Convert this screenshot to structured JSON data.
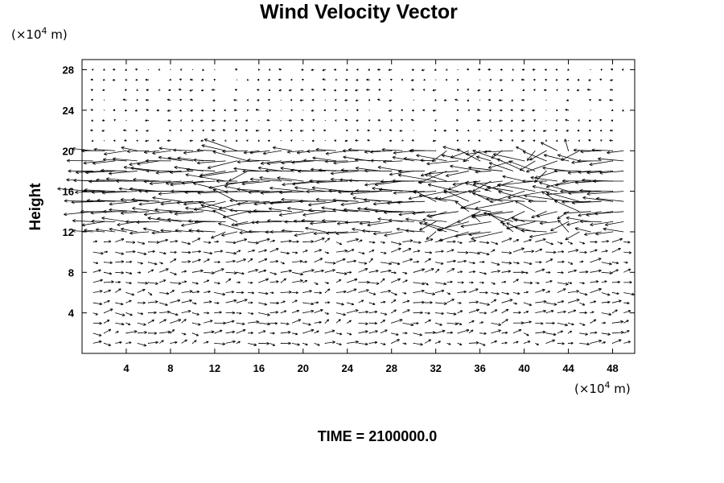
{
  "chart_data": {
    "type": "vector-field",
    "title": "Wind Velocity Vector",
    "ylabel": "Height",
    "x_unit": {
      "prefix": "(×10",
      "exponent": "4",
      "suffix": " m)"
    },
    "y_unit": {
      "prefix": "(×10",
      "exponent": "4",
      "suffix": " m)"
    },
    "xlim": [
      0,
      50
    ],
    "ylim": [
      0,
      29
    ],
    "x_ticks": [
      4,
      8,
      12,
      16,
      20,
      24,
      28,
      32,
      36,
      40,
      44,
      48
    ],
    "y_ticks": [
      4,
      8,
      12,
      16,
      20,
      24,
      28
    ],
    "grid_x": [
      2,
      4,
      6,
      8,
      10,
      12,
      14,
      16,
      18,
      20,
      22,
      24,
      26,
      28,
      30,
      32,
      34,
      36,
      38,
      40,
      42,
      44,
      46,
      48
    ],
    "grid_y": [
      1,
      2,
      3,
      4,
      5,
      6,
      7,
      8,
      9,
      10,
      11,
      12,
      13,
      14,
      15,
      16,
      17,
      18,
      19,
      20,
      21,
      22,
      23,
      24,
      25,
      26,
      27,
      28
    ],
    "jet_band": [
      12,
      20
    ],
    "footer": "TIME = 2100000.0"
  }
}
